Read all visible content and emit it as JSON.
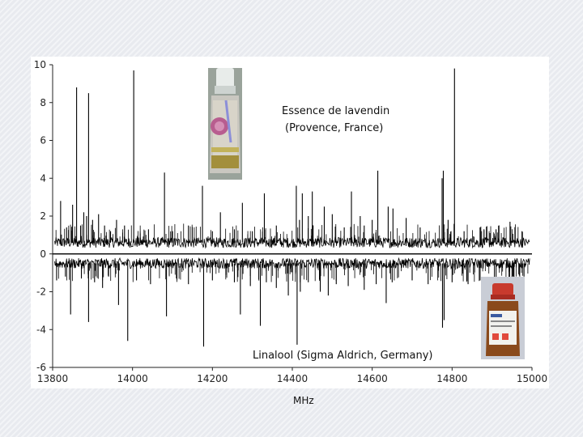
{
  "chart_data": {
    "type": "line",
    "xlabel": "MHz",
    "ylabel": "",
    "xlim": [
      13800,
      15000
    ],
    "ylim": [
      -6,
      10
    ],
    "x_ticks": [
      13800,
      14000,
      14200,
      14400,
      14600,
      14800,
      15000
    ],
    "y_ticks": [
      10,
      8,
      6,
      4,
      2,
      0,
      -2,
      -4,
      -6
    ],
    "grid": false,
    "annotations": [
      {
        "text": "Essence de lavendin",
        "series": "top"
      },
      {
        "text": "(Provence, France)",
        "series": "top"
      },
      {
        "text": "Linalool (Sigma Aldrich, Germany)",
        "series": "bottom"
      }
    ],
    "series": [
      {
        "baseline": 0.6,
        "peaks": [
          [
            13820,
            2.8
          ],
          [
            13835,
            1.4
          ],
          [
            13850,
            2.6
          ],
          [
            13860,
            8.8
          ],
          [
            13870,
            1.5
          ],
          [
            13878,
            2.2
          ],
          [
            13885,
            2.0
          ],
          [
            13890,
            8.5
          ],
          [
            13900,
            1.8
          ],
          [
            13915,
            2.1
          ],
          [
            13930,
            1.5
          ],
          [
            13945,
            1.2
          ],
          [
            13960,
            1.8
          ],
          [
            13980,
            1.5
          ],
          [
            14003,
            9.7
          ],
          [
            14040,
            1.3
          ],
          [
            14080,
            4.3
          ],
          [
            14100,
            1.2
          ],
          [
            14140,
            1.5
          ],
          [
            14175,
            3.6
          ],
          [
            14200,
            1.2
          ],
          [
            14220,
            2.2
          ],
          [
            14255,
            1.3
          ],
          [
            14275,
            2.7
          ],
          [
            14300,
            1.2
          ],
          [
            14330,
            3.2
          ],
          [
            14360,
            1.5
          ],
          [
            14410,
            3.6
          ],
          [
            14418,
            1.8
          ],
          [
            14425,
            3.2
          ],
          [
            14440,
            2.0
          ],
          [
            14450,
            3.3
          ],
          [
            14480,
            2.5
          ],
          [
            14500,
            2.1
          ],
          [
            14530,
            1.4
          ],
          [
            14548,
            3.3
          ],
          [
            14570,
            2.0
          ],
          [
            14580,
            1.5
          ],
          [
            14600,
            1.8
          ],
          [
            14614,
            4.4
          ],
          [
            14640,
            2.5
          ],
          [
            14652,
            2.4
          ],
          [
            14685,
            1.9
          ],
          [
            14720,
            1.4
          ],
          [
            14775,
            4.0
          ],
          [
            14778,
            4.4
          ],
          [
            14790,
            1.8
          ],
          [
            14806,
            9.8
          ],
          [
            14830,
            1.2
          ],
          [
            14870,
            1.4
          ],
          [
            14910,
            1.3
          ],
          [
            14945,
            1.7
          ],
          [
            14975,
            1.2
          ]
        ]
      },
      {
        "baseline": -0.5,
        "peaks": [
          [
            13810,
            -1.4
          ],
          [
            13832,
            -1.2
          ],
          [
            13845,
            -3.2
          ],
          [
            13872,
            -1.3
          ],
          [
            13890,
            -3.6
          ],
          [
            13905,
            -1.5
          ],
          [
            13925,
            -1.8
          ],
          [
            13940,
            -1.2
          ],
          [
            13965,
            -2.7
          ],
          [
            13988,
            -4.6
          ],
          [
            14010,
            -1.4
          ],
          [
            14045,
            -1.6
          ],
          [
            14085,
            -3.3
          ],
          [
            14110,
            -1.3
          ],
          [
            14140,
            -1.6
          ],
          [
            14178,
            -4.9
          ],
          [
            14200,
            -1.4
          ],
          [
            14255,
            -1.5
          ],
          [
            14270,
            -3.2
          ],
          [
            14295,
            -1.7
          ],
          [
            14320,
            -3.8
          ],
          [
            14335,
            -1.5
          ],
          [
            14360,
            -1.8
          ],
          [
            14390,
            -2.2
          ],
          [
            14412,
            -4.8
          ],
          [
            14420,
            -2.0
          ],
          [
            14440,
            -1.5
          ],
          [
            14470,
            -2.0
          ],
          [
            14490,
            -2.2
          ],
          [
            14510,
            -1.6
          ],
          [
            14540,
            -1.7
          ],
          [
            14580,
            -1.9
          ],
          [
            14610,
            -1.6
          ],
          [
            14635,
            -2.6
          ],
          [
            14650,
            -1.5
          ],
          [
            14700,
            -1.4
          ],
          [
            14740,
            -1.6
          ],
          [
            14776,
            -3.9
          ],
          [
            14780,
            -3.5
          ],
          [
            14800,
            -1.5
          ],
          [
            14840,
            -1.6
          ],
          [
            14870,
            -1.4
          ],
          [
            14910,
            -1.5
          ],
          [
            14950,
            -1.3
          ],
          [
            14980,
            -1.2
          ]
        ]
      }
    ]
  },
  "images": {
    "top_bottle_icon": "perfume-bottle-icon",
    "bottom_bottle_icon": "reagent-bottle-icon"
  }
}
